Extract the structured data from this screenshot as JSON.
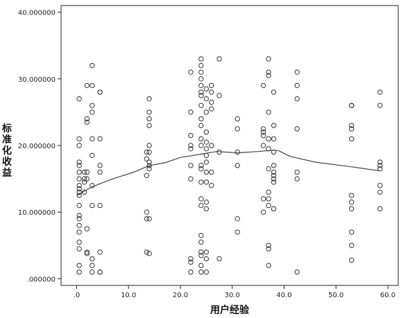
{
  "chart_data": {
    "type": "scatter",
    "title": "",
    "xlabel": "用户经验",
    "ylabel": "标准化收益",
    "xlim": [
      -3,
      62
    ],
    "ylim": [
      -1,
      41
    ],
    "x_ticks": [
      0,
      10,
      20,
      30,
      40,
      50,
      60
    ],
    "x_tick_labels": [
      ".0",
      "10.0",
      "20.0",
      "30.0",
      "40.0",
      "50.0",
      "60.0"
    ],
    "y_ticks": [
      0,
      10,
      20,
      30,
      40
    ],
    "y_tick_labels": [
      ".000000",
      "10.000000",
      "20.000000",
      "30.000000",
      "40.000000"
    ],
    "grid": false,
    "colors": {
      "background": "#ffffff",
      "plot_bg": "#ffffff",
      "axes": "#222222",
      "marker": "#333333",
      "fit_line": "#444444"
    },
    "series": [
      {
        "type": "scatter",
        "points": [
          [
            0.5,
            27
          ],
          [
            0.5,
            21
          ],
          [
            0.5,
            20
          ],
          [
            0.5,
            17.5
          ],
          [
            0.5,
            17
          ],
          [
            0.5,
            16
          ],
          [
            0.5,
            15
          ],
          [
            0.5,
            14
          ],
          [
            0.5,
            13.5
          ],
          [
            0.5,
            13
          ],
          [
            0.5,
            12.5
          ],
          [
            0.5,
            11
          ],
          [
            0.5,
            9.5
          ],
          [
            0.5,
            9
          ],
          [
            0.5,
            8
          ],
          [
            0.5,
            7
          ],
          [
            0.5,
            5.5
          ],
          [
            0.5,
            4.5
          ],
          [
            0.5,
            2
          ],
          [
            0.5,
            1
          ],
          [
            1.5,
            16
          ],
          [
            1.5,
            15
          ],
          [
            1.5,
            14.5
          ],
          [
            1.5,
            13
          ],
          [
            2,
            29
          ],
          [
            2,
            24
          ],
          [
            2,
            23.5
          ],
          [
            2,
            16
          ],
          [
            2,
            15
          ],
          [
            2,
            7.5
          ],
          [
            2,
            4
          ],
          [
            2,
            3.8
          ],
          [
            3,
            32
          ],
          [
            3,
            29
          ],
          [
            3,
            26
          ],
          [
            3,
            25
          ],
          [
            3,
            21
          ],
          [
            3,
            18.5
          ],
          [
            3,
            14
          ],
          [
            3,
            11
          ],
          [
            3,
            3
          ],
          [
            3,
            2
          ],
          [
            3,
            1
          ],
          [
            4.5,
            28
          ],
          [
            4.5,
            28
          ],
          [
            4.5,
            21
          ],
          [
            4.5,
            17
          ],
          [
            4.5,
            16
          ],
          [
            4.5,
            11
          ],
          [
            4.5,
            4
          ],
          [
            4.5,
            1
          ],
          [
            4.5,
            1
          ],
          [
            13.5,
            19
          ],
          [
            13.5,
            18
          ],
          [
            13.5,
            15.5
          ],
          [
            13.5,
            10
          ],
          [
            13.5,
            9
          ],
          [
            13.5,
            4
          ],
          [
            14,
            27
          ],
          [
            14,
            25
          ],
          [
            14,
            24
          ],
          [
            14,
            23
          ],
          [
            14,
            20
          ],
          [
            14,
            19
          ],
          [
            14,
            17.5
          ],
          [
            14,
            17
          ],
          [
            14,
            16.5
          ],
          [
            14,
            9
          ],
          [
            14,
            3.8
          ],
          [
            22,
            31
          ],
          [
            22,
            25
          ],
          [
            22,
            21.5
          ],
          [
            22,
            20
          ],
          [
            22,
            19.5
          ],
          [
            22,
            17
          ],
          [
            22,
            15
          ],
          [
            22,
            3
          ],
          [
            22,
            2.5
          ],
          [
            22,
            1
          ],
          [
            24,
            33
          ],
          [
            24,
            32
          ],
          [
            24,
            31
          ],
          [
            24,
            30
          ],
          [
            24,
            29
          ],
          [
            24,
            28
          ],
          [
            24,
            27.5
          ],
          [
            24,
            26
          ],
          [
            24,
            24
          ],
          [
            24,
            23
          ],
          [
            24,
            21
          ],
          [
            24,
            20
          ],
          [
            24,
            17
          ],
          [
            24,
            16.5
          ],
          [
            24,
            14.5
          ],
          [
            24,
            12
          ],
          [
            24,
            11
          ],
          [
            24,
            6.5
          ],
          [
            24,
            5.5
          ],
          [
            24,
            4
          ],
          [
            24,
            3.5
          ],
          [
            24,
            2
          ],
          [
            24,
            1
          ],
          [
            25,
            28.5
          ],
          [
            25,
            27
          ],
          [
            25,
            25
          ],
          [
            25,
            22
          ],
          [
            25,
            20.5
          ],
          [
            25,
            19.5
          ],
          [
            25,
            18.5
          ],
          [
            25,
            17.5
          ],
          [
            25,
            16
          ],
          [
            25,
            14.5
          ],
          [
            25,
            11.5
          ],
          [
            25,
            10.5
          ],
          [
            25,
            4
          ],
          [
            25,
            3
          ],
          [
            25,
            1
          ],
          [
            26,
            29
          ],
          [
            26,
            28
          ],
          [
            26,
            26.5
          ],
          [
            26,
            25.5
          ],
          [
            26,
            20
          ],
          [
            26,
            16
          ],
          [
            26,
            14
          ],
          [
            27.5,
            33
          ],
          [
            27.5,
            27.5
          ],
          [
            27.5,
            19
          ],
          [
            27.5,
            3
          ],
          [
            31,
            24
          ],
          [
            31,
            22.5
          ],
          [
            31,
            19
          ],
          [
            31,
            17
          ],
          [
            31,
            9
          ],
          [
            31,
            7
          ],
          [
            36,
            29
          ],
          [
            36,
            22.5
          ],
          [
            36,
            22
          ],
          [
            36,
            21.5
          ],
          [
            36,
            20
          ],
          [
            36,
            12
          ],
          [
            36,
            10
          ],
          [
            37,
            33
          ],
          [
            37,
            31
          ],
          [
            37,
            30.5
          ],
          [
            37,
            25
          ],
          [
            37,
            21
          ],
          [
            37,
            19.5
          ],
          [
            37,
            16.5
          ],
          [
            37,
            13
          ],
          [
            37,
            12
          ],
          [
            37,
            11
          ],
          [
            37,
            5
          ],
          [
            37,
            4.5
          ],
          [
            37,
            2
          ],
          [
            38,
            28
          ],
          [
            38,
            23
          ],
          [
            38,
            21
          ],
          [
            38,
            19
          ],
          [
            38,
            17
          ],
          [
            38,
            16
          ],
          [
            38,
            15.5
          ],
          [
            38,
            15
          ],
          [
            38,
            14.5
          ],
          [
            38,
            10.5
          ],
          [
            42.5,
            31
          ],
          [
            42.5,
            29
          ],
          [
            42.5,
            27
          ],
          [
            42.5,
            22.5
          ],
          [
            42.5,
            16
          ],
          [
            42.5,
            15
          ],
          [
            42.5,
            1
          ],
          [
            53,
            26
          ],
          [
            53,
            26
          ],
          [
            53,
            23
          ],
          [
            53,
            22.5
          ],
          [
            53,
            21
          ],
          [
            53,
            12.5
          ],
          [
            53,
            11.5
          ],
          [
            53,
            10.5
          ],
          [
            53,
            7
          ],
          [
            53,
            5
          ],
          [
            53,
            2.8
          ],
          [
            58.5,
            28
          ],
          [
            58.5,
            26
          ],
          [
            58.5,
            17.5
          ],
          [
            58.5,
            17
          ],
          [
            58.5,
            16.5
          ],
          [
            58.5,
            14
          ],
          [
            58.5,
            13
          ],
          [
            58.5,
            10.5
          ]
        ]
      },
      {
        "type": "line",
        "points": [
          [
            0,
            12.5
          ],
          [
            3,
            13.8
          ],
          [
            7,
            15
          ],
          [
            11,
            16
          ],
          [
            14,
            17
          ],
          [
            17,
            17.4
          ],
          [
            20,
            18.2
          ],
          [
            24,
            18.7
          ],
          [
            27,
            19.1
          ],
          [
            31,
            18.9
          ],
          [
            35,
            19.1
          ],
          [
            38,
            19.3
          ],
          [
            39,
            19.2
          ],
          [
            41,
            18.4
          ],
          [
            46,
            17.5
          ],
          [
            52,
            16.9
          ],
          [
            58.5,
            16.2
          ]
        ]
      }
    ]
  }
}
